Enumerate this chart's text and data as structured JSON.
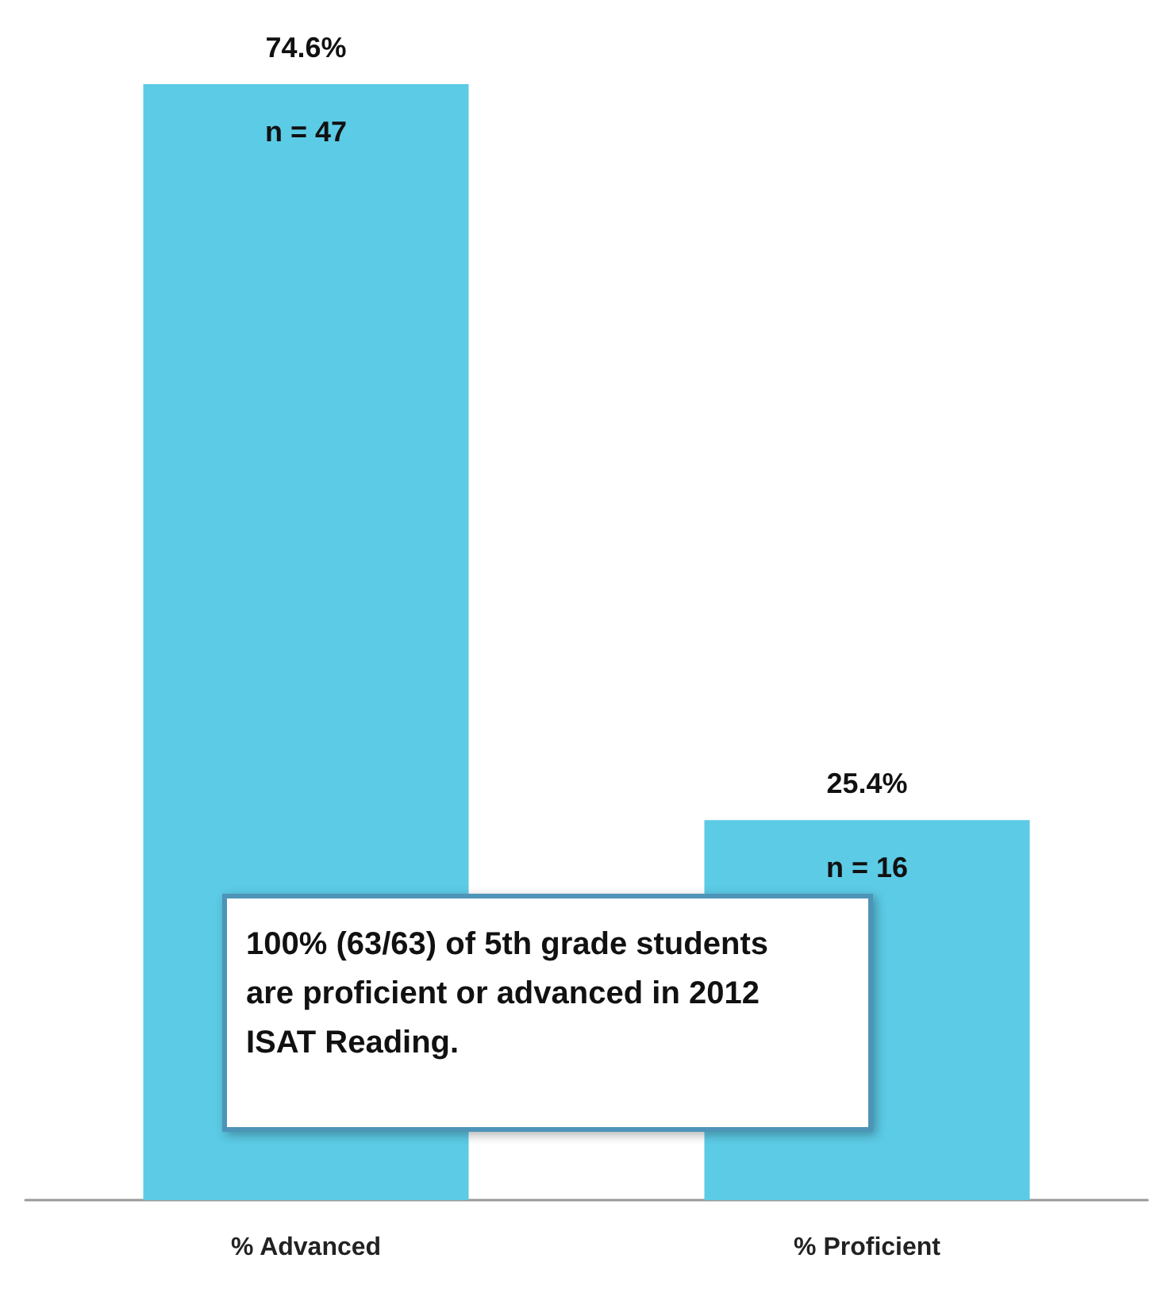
{
  "chart_data": {
    "type": "bar",
    "categories": [
      "% Advanced",
      "% Proficient"
    ],
    "values": [
      74.6,
      25.4
    ],
    "value_labels": [
      "74.6%",
      "25.4%"
    ],
    "color": "#5ccbe6",
    "annotations": [
      "100% (63/63) of 5th grade students are proficient or advanced in 2012 ISAT Reading.",
      {
        "text": "n = 47",
        "x": "% Advanced",
        "y": 74.6
      },
      {
        "text": "n = 16",
        "x": "% Proficient",
        "y": 25.4
      }
    ]
  }
}
